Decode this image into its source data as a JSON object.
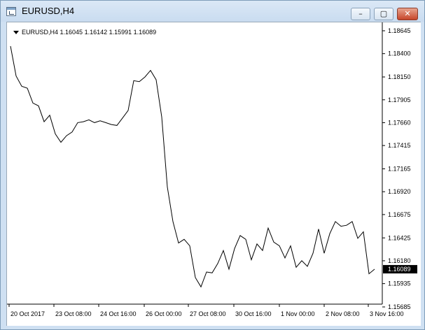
{
  "window": {
    "title": "EURUSD,H4",
    "minimize_glyph": "–",
    "maximize_glyph": "▢",
    "close_glyph": "✕"
  },
  "chart_header": {
    "symbol": "EURUSD,H4",
    "ohlc": "1.16045 1.16142 1.15991 1.16089"
  },
  "chart_data": {
    "type": "line",
    "symbol": "EURUSD",
    "timeframe": "H4",
    "y_ticks": [
      "1.18645",
      "1.18400",
      "1.18150",
      "1.17905",
      "1.17660",
      "1.17415",
      "1.17165",
      "1.16920",
      "1.16675",
      "1.16425",
      "1.16180",
      "1.15935",
      "1.15685"
    ],
    "ylim": [
      1.15685,
      1.18645
    ],
    "x_ticks": [
      "20 Oct 2017",
      "23 Oct 08:00",
      "24 Oct 16:00",
      "26 Oct 00:00",
      "27 Oct 08:00",
      "30 Oct 16:00",
      "1 Nov 00:00",
      "2 Nov 08:00",
      "3 Nov 16:00"
    ],
    "current_price": "1.16089",
    "values": [
      1.1848,
      1.1816,
      1.1805,
      1.1803,
      1.1787,
      1.1784,
      1.1767,
      1.1774,
      1.1754,
      1.1745,
      1.1752,
      1.1756,
      1.1766,
      1.1767,
      1.1769,
      1.1766,
      1.1768,
      1.1766,
      1.1764,
      1.1763,
      1.1771,
      1.1779,
      1.1811,
      1.181,
      1.1815,
      1.1822,
      1.1812,
      1.1772,
      1.1697,
      1.166,
      1.1637,
      1.1641,
      1.1634,
      1.16,
      1.159,
      1.1606,
      1.1605,
      1.1615,
      1.1629,
      1.1609,
      1.1631,
      1.1645,
      1.1641,
      1.1619,
      1.1636,
      1.1629,
      1.1653,
      1.1638,
      1.1634,
      1.1621,
      1.1634,
      1.1611,
      1.1618,
      1.1612,
      1.1626,
      1.1652,
      1.1626,
      1.1647,
      1.166,
      1.1655,
      1.1656,
      1.166,
      1.1642,
      1.1649,
      1.1604,
      1.1609
    ],
    "grid": false,
    "colors": {
      "line": "#000000",
      "price_label_bg": "#000000",
      "background": "#ffffff"
    }
  }
}
